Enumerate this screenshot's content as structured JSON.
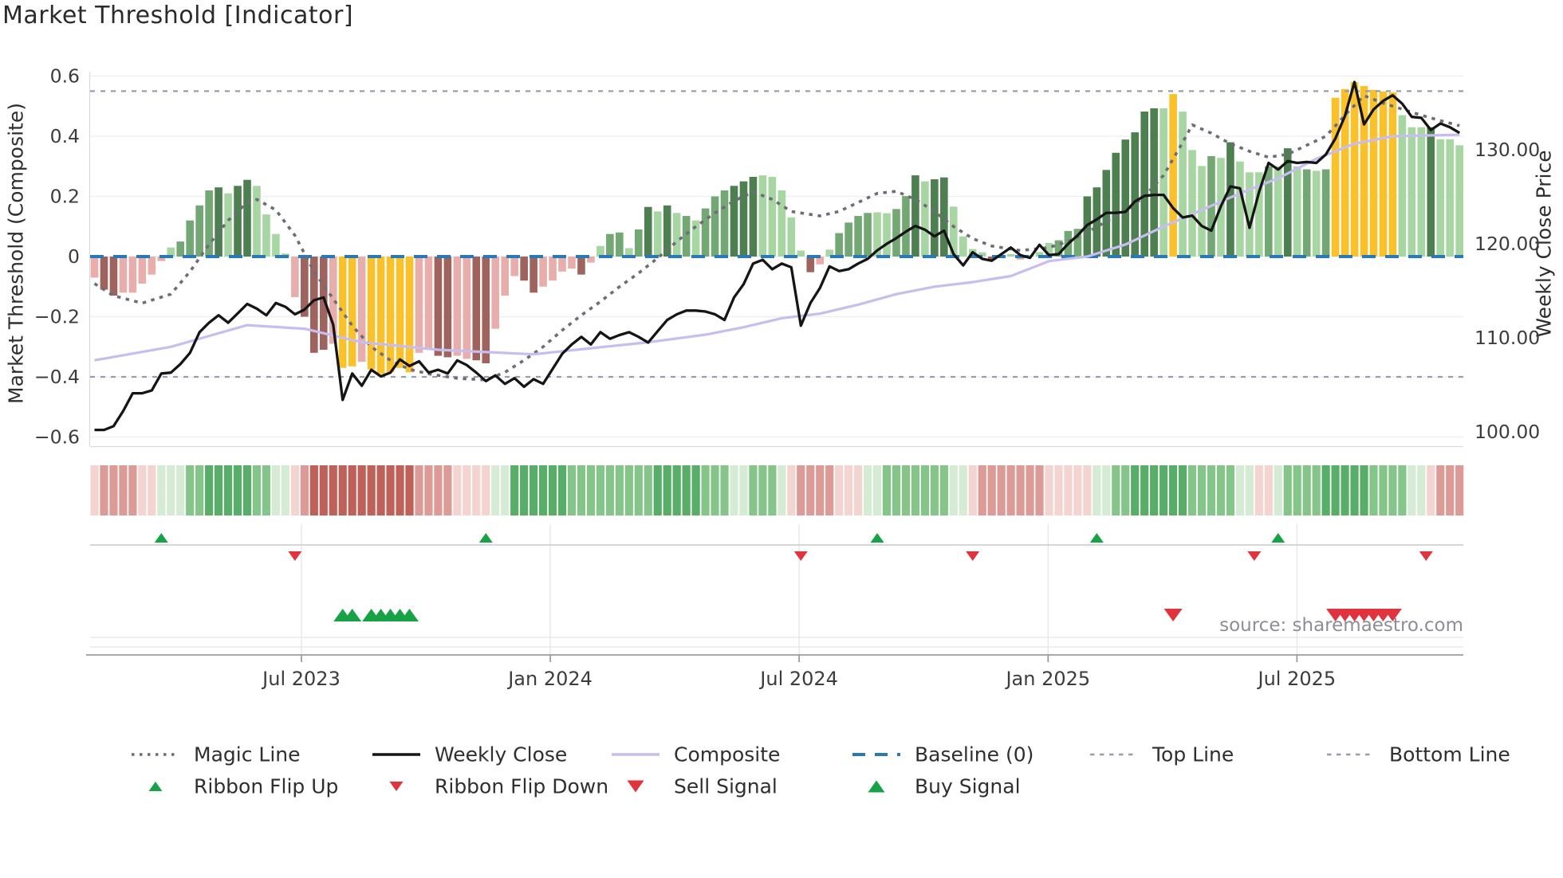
{
  "title": "Market Threshold [Indicator]",
  "source_note": "source: sharemaestro.com",
  "axes": {
    "left": {
      "title": "Market Threshold (Composite)",
      "tick_labels": [
        "0.6",
        "0.4",
        "0.2",
        "0",
        "−0.2",
        "−0.4",
        "−0.6"
      ],
      "tick_values": [
        0.6,
        0.4,
        0.2,
        0,
        -0.2,
        -0.4,
        -0.6
      ]
    },
    "right": {
      "title": "Weekly Close Price",
      "tick_labels": [
        "130.00",
        "120.00",
        "110.00",
        "100.00"
      ],
      "tick_values": [
        130,
        120,
        110,
        100
      ]
    },
    "x": {
      "tick_labels": [
        "Jul 2023",
        "Jan 2024",
        "Jul 2024",
        "Jan 2025",
        "Jul 2025"
      ],
      "tick_weeks": [
        21.68,
        47.75,
        73.82,
        99.9,
        125.97
      ]
    }
  },
  "chart_data": {
    "type": "bar+line",
    "x_unit": "week",
    "n_weeks": 144,
    "ylim_left": [
      -0.6,
      0.6
    ],
    "ylim_right": [
      100,
      139
    ],
    "reference_lines": {
      "baseline": 0,
      "top_line": 0.55,
      "bottom_line": -0.4
    },
    "bars": {
      "name": "Market Threshold (Composite)",
      "values": [
        -0.07,
        -0.11,
        -0.13,
        -0.12,
        -0.12,
        -0.09,
        -0.06,
        -0.015,
        0.03,
        0.05,
        0.12,
        0.17,
        0.22,
        0.23,
        0.21,
        0.235,
        0.255,
        0.235,
        0.14,
        0.075,
        0.01,
        -0.135,
        -0.2,
        -0.32,
        -0.31,
        -0.29,
        -0.37,
        -0.365,
        -0.35,
        -0.375,
        -0.39,
        -0.385,
        -0.37,
        -0.385,
        -0.32,
        -0.31,
        -0.33,
        -0.335,
        -0.33,
        -0.34,
        -0.345,
        -0.355,
        -0.24,
        -0.13,
        -0.065,
        -0.08,
        -0.12,
        -0.1,
        -0.08,
        -0.05,
        -0.04,
        -0.06,
        -0.02,
        0.035,
        0.075,
        0.08,
        0.028,
        0.09,
        0.165,
        0.15,
        0.17,
        0.145,
        0.135,
        0.12,
        0.16,
        0.2,
        0.22,
        0.235,
        0.25,
        0.265,
        0.27,
        0.265,
        0.22,
        0.13,
        0.02,
        -0.052,
        -0.026,
        0.023,
        0.078,
        0.113,
        0.135,
        0.145,
        0.147,
        0.144,
        0.158,
        0.201,
        0.27,
        0.25,
        0.257,
        0.263,
        0.166,
        0.067,
        0.025,
        0.014,
        -0.012,
        -0.005,
        0.008,
        -0.01,
        0.005,
        0.015,
        0.045,
        0.054,
        0.085,
        0.092,
        0.2,
        0.23,
        0.288,
        0.345,
        0.389,
        0.413,
        0.482,
        0.493,
        0.493,
        0.54,
        0.482,
        0.354,
        0.301,
        0.334,
        0.328,
        0.38,
        0.316,
        0.28,
        0.28,
        0.3,
        0.3,
        0.36,
        0.3,
        0.29,
        0.285,
        0.29,
        0.528,
        0.557,
        0.58,
        0.567,
        0.554,
        0.549,
        0.546,
        0.47,
        0.43,
        0.43,
        0.43,
        0.39,
        0.39,
        0.37
      ],
      "color_codes": [
        "P",
        "B",
        "B",
        "P",
        "P",
        "P",
        "P",
        "P",
        "L",
        "G",
        "G",
        "G",
        "G",
        "D",
        "L",
        "D",
        "D",
        "L",
        "L",
        "L",
        "L",
        "P",
        "B",
        "B",
        "B",
        "P",
        "Y",
        "Y",
        "P",
        "Y",
        "Y",
        "Y",
        "Y",
        "Y",
        "P",
        "P",
        "B",
        "B",
        "P",
        "P",
        "B",
        "B",
        "P",
        "P",
        "P",
        "B",
        "B",
        "P",
        "P",
        "P",
        "P",
        "B",
        "P",
        "L",
        "G",
        "G",
        "L",
        "G",
        "D",
        "L",
        "D",
        "L",
        "G",
        "L",
        "G",
        "G",
        "G",
        "D",
        "D",
        "D",
        "L",
        "L",
        "L",
        "L",
        "L",
        "B",
        "P",
        "L",
        "G",
        "G",
        "G",
        "G",
        "L",
        "L",
        "G",
        "G",
        "D",
        "L",
        "D",
        "D",
        "L",
        "L",
        "L",
        "L",
        "B",
        "P",
        "L",
        "P",
        "L",
        "L",
        "L",
        "G",
        "G",
        "G",
        "D",
        "D",
        "D",
        "D",
        "D",
        "D",
        "D",
        "D",
        "L",
        "Y",
        "L",
        "L",
        "L",
        "G",
        "L",
        "D",
        "L",
        "L",
        "L",
        "G",
        "L",
        "D",
        "L",
        "G",
        "L",
        "G",
        "Y",
        "Y",
        "Y",
        "Y",
        "Y",
        "Y",
        "Y",
        "L",
        "L",
        "L",
        "D",
        "L",
        "L",
        "L"
      ]
    },
    "weekly_close": {
      "name": "Weekly Close",
      "values": [
        100.2,
        100.2,
        100.6,
        102.2,
        104.1,
        104.1,
        104.4,
        106.2,
        106.3,
        107.2,
        108.4,
        110.6,
        111.6,
        112.4,
        111.6,
        112.6,
        113.6,
        113.1,
        112.4,
        113.7,
        113.3,
        112.5,
        113.0,
        114.0,
        114.3,
        111.4,
        103.4,
        106.2,
        104.9,
        106.6,
        105.9,
        106.3,
        107.7,
        107.0,
        107.5,
        106.3,
        106.6,
        106.2,
        107.6,
        107.1,
        106.3,
        105.4,
        106.0,
        105.1,
        105.7,
        104.8,
        105.6,
        105.1,
        106.7,
        108.3,
        109.3,
        110.1,
        109.3,
        110.6,
        109.9,
        110.3,
        110.6,
        110.1,
        109.5,
        110.7,
        111.9,
        112.5,
        112.9,
        112.9,
        112.8,
        112.5,
        111.9,
        114.3,
        115.7,
        117.9,
        118.3,
        117.3,
        117.9,
        117.5,
        111.3,
        113.7,
        115.3,
        117.6,
        117.1,
        117.3,
        117.9,
        118.4,
        119.3,
        120.0,
        120.6,
        121.3,
        121.9,
        121.5,
        120.8,
        121.4,
        118.9,
        117.7,
        119.1,
        118.4,
        118.2,
        118.9,
        119.6,
        118.8,
        118.5,
        119.9,
        118.8,
        118.9,
        120.0,
        120.9,
        122.0,
        122.6,
        123.3,
        123.3,
        123.4,
        124.5,
        125.1,
        125.2,
        125.2,
        123.8,
        122.8,
        123.0,
        121.9,
        121.4,
        124.0,
        126.1,
        125.9,
        121.7,
        125.5,
        128.6,
        127.9,
        128.8,
        128.6,
        128.7,
        128.6,
        129.5,
        131.2,
        133.6,
        137.2,
        132.7,
        134.3,
        135.2,
        135.8,
        134.9,
        133.5,
        133.4,
        132.1,
        132.8,
        132.4,
        131.8
      ]
    },
    "composite_line": {
      "name": "Composite",
      "anchors": [
        [
          0,
          -0.345
        ],
        [
          8,
          -0.3
        ],
        [
          16,
          -0.228
        ],
        [
          22,
          -0.24
        ],
        [
          28,
          -0.285
        ],
        [
          36,
          -0.31
        ],
        [
          46,
          -0.325
        ],
        [
          52,
          -0.305
        ],
        [
          58,
          -0.285
        ],
        [
          64,
          -0.26
        ],
        [
          68,
          -0.235
        ],
        [
          72,
          -0.205
        ],
        [
          76,
          -0.19
        ],
        [
          80,
          -0.16
        ],
        [
          84,
          -0.125
        ],
        [
          88,
          -0.1
        ],
        [
          92,
          -0.085
        ],
        [
          96,
          -0.065
        ],
        [
          100,
          -0.015
        ],
        [
          104,
          0.0
        ],
        [
          108,
          0.04
        ],
        [
          112,
          0.1
        ],
        [
          116,
          0.155
        ],
        [
          120,
          0.21
        ],
        [
          124,
          0.26
        ],
        [
          128,
          0.325
        ],
        [
          132,
          0.375
        ],
        [
          136,
          0.4
        ],
        [
          143,
          0.405
        ]
      ]
    },
    "magic_line": {
      "name": "Magic Line",
      "anchors": [
        [
          0,
          -0.09
        ],
        [
          2,
          -0.13
        ],
        [
          5,
          -0.155
        ],
        [
          8,
          -0.125
        ],
        [
          10,
          -0.05
        ],
        [
          12,
          0.04
        ],
        [
          14,
          0.12
        ],
        [
          16,
          0.18
        ],
        [
          17,
          0.19
        ],
        [
          19,
          0.155
        ],
        [
          21,
          0.07
        ],
        [
          23,
          -0.05
        ],
        [
          25,
          -0.14
        ],
        [
          27,
          -0.23
        ],
        [
          29,
          -0.3
        ],
        [
          31,
          -0.345
        ],
        [
          33,
          -0.375
        ],
        [
          35,
          -0.39
        ],
        [
          38,
          -0.405
        ],
        [
          41,
          -0.41
        ],
        [
          43,
          -0.385
        ],
        [
          45,
          -0.345
        ],
        [
          47,
          -0.3
        ],
        [
          49,
          -0.245
        ],
        [
          51,
          -0.195
        ],
        [
          53,
          -0.15
        ],
        [
          55,
          -0.1
        ],
        [
          57,
          -0.055
        ],
        [
          59,
          -0.005
        ],
        [
          61,
          0.05
        ],
        [
          63,
          0.1
        ],
        [
          65,
          0.145
        ],
        [
          67,
          0.185
        ],
        [
          69,
          0.215
        ],
        [
          71,
          0.19
        ],
        [
          73,
          0.15
        ],
        [
          76,
          0.135
        ],
        [
          78,
          0.15
        ],
        [
          80,
          0.18
        ],
        [
          82,
          0.21
        ],
        [
          84,
          0.217
        ],
        [
          86,
          0.19
        ],
        [
          88,
          0.15
        ],
        [
          90,
          0.1
        ],
        [
          92,
          0.06
        ],
        [
          94,
          0.035
        ],
        [
          97,
          0.02
        ],
        [
          100,
          0.03
        ],
        [
          102,
          0.05
        ],
        [
          104,
          0.08
        ],
        [
          106,
          0.117
        ],
        [
          108,
          0.15
        ],
        [
          110,
          0.2
        ],
        [
          112,
          0.27
        ],
        [
          114,
          0.38
        ],
        [
          115,
          0.438
        ],
        [
          117,
          0.41
        ],
        [
          119,
          0.375
        ],
        [
          121,
          0.35
        ],
        [
          123,
          0.33
        ],
        [
          125,
          0.34
        ],
        [
          127,
          0.37
        ],
        [
          129,
          0.4
        ],
        [
          131,
          0.47
        ],
        [
          133,
          0.535
        ],
        [
          135,
          0.51
        ],
        [
          137,
          0.49
        ],
        [
          139,
          0.47
        ],
        [
          141,
          0.452
        ],
        [
          143,
          0.435
        ]
      ]
    },
    "ribbon": {
      "name": "Ribbon",
      "color_codes": [
        "lr",
        "mr",
        "mr",
        "mr",
        "mr",
        "lr",
        "lr",
        "lg",
        "lg",
        "lg",
        "mg",
        "mg",
        "dg",
        "dg",
        "dg",
        "dg",
        "dg",
        "mg",
        "mg",
        "lg",
        "lg",
        "lr",
        "mr",
        "dr",
        "dr",
        "dr",
        "dr",
        "dr",
        "dr",
        "dr",
        "dr",
        "dr",
        "dr",
        "dr",
        "mr",
        "mr",
        "mr",
        "mr",
        "lr",
        "lr",
        "lr",
        "lr",
        "lg",
        "lg",
        "dg",
        "dg",
        "dg",
        "dg",
        "dg",
        "dg",
        "mg",
        "mg",
        "mg",
        "mg",
        "mg",
        "mg",
        "mg",
        "mg",
        "mg",
        "dg",
        "dg",
        "dg",
        "dg",
        "dg",
        "mg",
        "mg",
        "mg",
        "lg",
        "lg",
        "mg",
        "mg",
        "mg",
        "lg",
        "lr",
        "mr",
        "mr",
        "mr",
        "mr",
        "lr",
        "lr",
        "lr",
        "lg",
        "lg",
        "mg",
        "mg",
        "mg",
        "mg",
        "mg",
        "mg",
        "mg",
        "lg",
        "lg",
        "lr",
        "mr",
        "mr",
        "mr",
        "mr",
        "mr",
        "mr",
        "mr",
        "lr",
        "lr",
        "lr",
        "lr",
        "lr",
        "lg",
        "lg",
        "mg",
        "mg",
        "dg",
        "dg",
        "dg",
        "dg",
        "dg",
        "dg",
        "mg",
        "mg",
        "mg",
        "mg",
        "mg",
        "lg",
        "lg",
        "lr",
        "lr",
        "lg",
        "mg",
        "mg",
        "mg",
        "mg",
        "dg",
        "dg",
        "dg",
        "dg",
        "dg",
        "mg",
        "mg",
        "mg",
        "mg",
        "lg",
        "lg",
        "lr",
        "mr",
        "mr",
        "mr"
      ]
    },
    "signals": {
      "ribbon_flip_up_weeks": [
        7,
        41,
        82,
        105,
        124
      ],
      "ribbon_flip_down_weeks": [
        21,
        74,
        92,
        121.5,
        139.5
      ],
      "buy_signal_weeks": [
        26,
        27,
        29,
        30,
        31,
        32,
        33
      ],
      "sell_signal_weeks": [
        113,
        130,
        131,
        132,
        133,
        134,
        135,
        136
      ]
    },
    "colors": {
      "bar": {
        "P": "#e7aeab",
        "B": "#9f635e",
        "Y": "#fbc12a",
        "L": "#a8d6a3",
        "G": "#73a773",
        "D": "#4e7f50"
      },
      "ribbon": {
        "lr": "#f3d4d1",
        "mr": "#dc9b96",
        "dr": "#bf6059",
        "lg": "#d5ebd3",
        "mg": "#85c589",
        "dg": "#58ad68"
      },
      "weekly_close": "#151515",
      "composite": "#c7bdef",
      "magic": "#6d6d77",
      "baseline": "#2979b8",
      "top_bottom": "#989ea8",
      "grid": "#eceef4",
      "signal_green": "#17a345",
      "signal_red": "#e0333d",
      "tick_text": "#3c3c3c"
    }
  },
  "legend": {
    "row1": [
      {
        "label": "Magic Line",
        "type": "dotted"
      },
      {
        "label": "Weekly Close",
        "type": "solid-black"
      },
      {
        "label": "Composite",
        "type": "solid-purple"
      },
      {
        "label": "Baseline (0)",
        "type": "dashed-blue"
      },
      {
        "label": "Top Line",
        "type": "dashed-gray"
      },
      {
        "label": "Bottom Line",
        "type": "dashed-gray"
      }
    ],
    "row2": [
      {
        "label": "Ribbon Flip Up",
        "type": "tri-up-small"
      },
      {
        "label": "Ribbon Flip Down",
        "type": "tri-down-small"
      },
      {
        "label": "Sell Signal",
        "type": "tri-down-big"
      },
      {
        "label": "Buy Signal",
        "type": "tri-up-big"
      }
    ]
  }
}
